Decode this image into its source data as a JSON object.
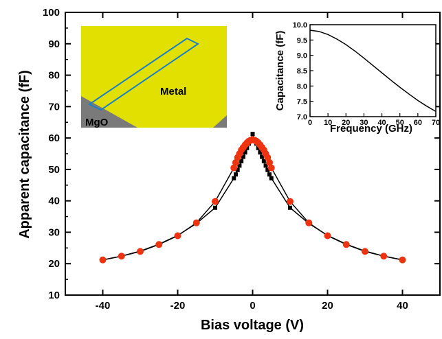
{
  "chart_data": [
    {
      "type": "scatter",
      "title": "",
      "xlabel": "Bias voltage (V)",
      "ylabel": "Apparent capacitance (fF)",
      "xlim": [
        -50,
        50
      ],
      "ylim": [
        10,
        100
      ],
      "xticks": [
        -40,
        -20,
        0,
        20,
        40
      ],
      "yticks": [
        10,
        20,
        30,
        40,
        50,
        60,
        70,
        80,
        90,
        100
      ],
      "grid": false,
      "series": [
        {
          "color": "#000000",
          "marker": "square",
          "line": true,
          "x": [
            -40,
            -35,
            -30,
            -25,
            -20,
            -15,
            -10,
            -5,
            -4.5,
            -4,
            -3.5,
            -3,
            -2.5,
            -2,
            -1.5,
            -1,
            -0.5,
            0,
            0.5,
            1,
            1.5,
            2,
            2.5,
            3,
            3.5,
            4,
            4.5,
            5,
            10,
            15,
            20,
            25,
            30,
            35,
            40
          ],
          "y": [
            21.2,
            22.4,
            24.0,
            26.2,
            29.0,
            32.8,
            37.8,
            47.2,
            48.4,
            49.8,
            51.2,
            52.6,
            54.0,
            55.4,
            56.8,
            58.2,
            59.6,
            61.3,
            59.6,
            58.2,
            56.8,
            55.4,
            54.0,
            52.6,
            51.2,
            49.8,
            48.4,
            47.2,
            37.8,
            32.8,
            29.0,
            26.2,
            24.0,
            22.4,
            21.2
          ]
        },
        {
          "color": "#ee3311",
          "marker": "circle",
          "line": true,
          "x": [
            -40,
            -35,
            -30,
            -25,
            -20,
            -15,
            -10,
            -5,
            -4.5,
            -4,
            -3.5,
            -3,
            -2.5,
            -2,
            -1.5,
            -1,
            -0.5,
            0,
            0.5,
            1,
            1.5,
            2,
            2.5,
            3,
            3.5,
            4,
            4.5,
            5,
            10,
            15,
            20,
            25,
            30,
            35,
            40
          ],
          "y": [
            21.2,
            22.4,
            23.9,
            26.1,
            28.9,
            33.0,
            39.8,
            50.5,
            52.2,
            53.8,
            55.0,
            56.2,
            57.0,
            57.8,
            58.5,
            59.0,
            59.3,
            59.5,
            59.3,
            59.0,
            58.5,
            57.8,
            57.0,
            56.2,
            55.0,
            53.8,
            52.2,
            50.5,
            39.8,
            33.0,
            28.9,
            26.1,
            23.9,
            22.4,
            21.2
          ]
        }
      ]
    },
    {
      "type": "line",
      "title": "",
      "xlabel": "Frequency (GHz)",
      "ylabel": "Capacitance (fF)",
      "xlim": [
        0,
        70
      ],
      "ylim": [
        7.0,
        10.0
      ],
      "xticks": [
        0,
        10,
        20,
        30,
        40,
        50,
        60,
        70
      ],
      "yticks": [
        7.0,
        7.5,
        8.0,
        8.5,
        9.0,
        9.5,
        10.0
      ],
      "series": [
        {
          "color": "#000000",
          "x": [
            0,
            5,
            10,
            15,
            20,
            25,
            30,
            35,
            40,
            45,
            50,
            55,
            60,
            65,
            70
          ],
          "y": [
            9.82,
            9.78,
            9.68,
            9.53,
            9.35,
            9.14,
            8.91,
            8.67,
            8.43,
            8.19,
            7.96,
            7.74,
            7.53,
            7.34,
            7.17
          ]
        }
      ]
    }
  ],
  "picture": {
    "metal_label": "Metal",
    "substrate_label": "MgO",
    "metal_color": "#e2e000",
    "substrate_color": "#7a7a7a",
    "line_color": "#1a7fc4"
  }
}
